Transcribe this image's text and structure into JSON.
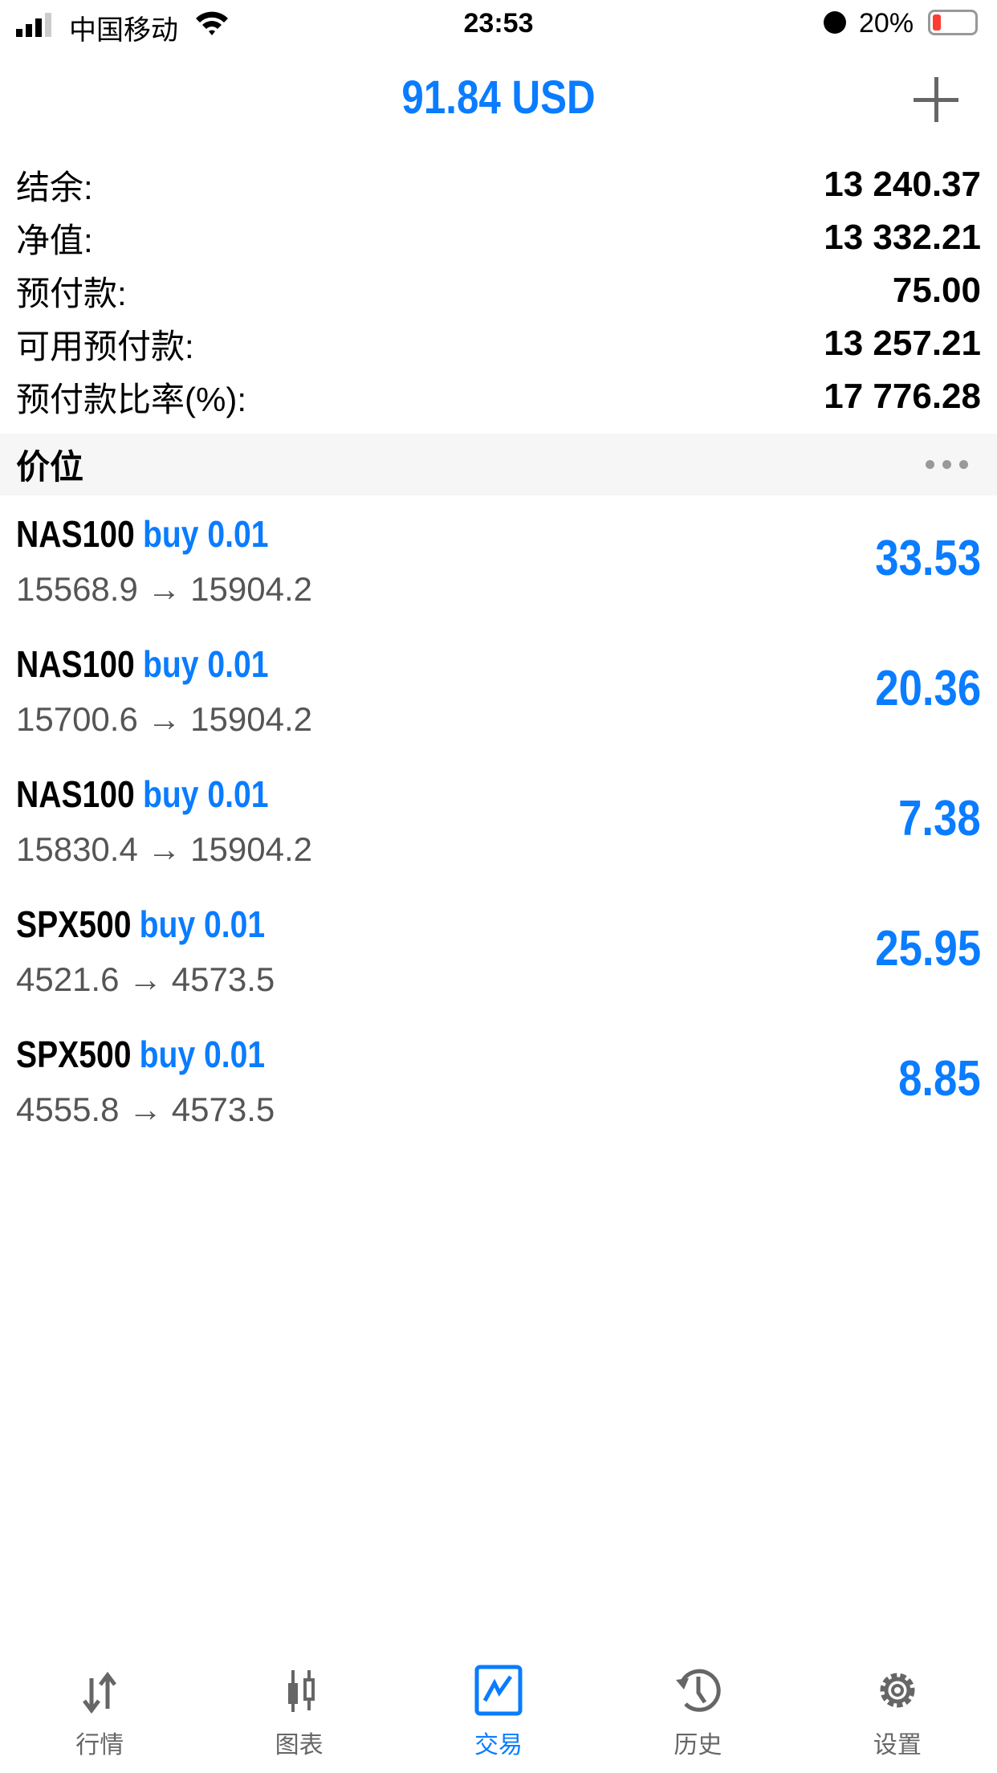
{
  "status_bar": {
    "carrier": "中国移动",
    "time": "23:53",
    "battery": "20%",
    "battery_level": 0.2
  },
  "header": {
    "title": "91.84 USD",
    "add_icon": "plus-icon"
  },
  "account": [
    {
      "label": "结余:",
      "value": "13 240.37"
    },
    {
      "label": "净值:",
      "value": "13 332.21"
    },
    {
      "label": "预付款:",
      "value": "75.00"
    },
    {
      "label": "可用预付款:",
      "value": "13 257.21"
    },
    {
      "label": "预付款比率(%):",
      "value": "17 776.28"
    }
  ],
  "section": {
    "title": "价位"
  },
  "trades": [
    {
      "symbol": "NAS100",
      "side": "buy 0.01",
      "prices": "15568.9 → 15904.2",
      "profit": "33.53"
    },
    {
      "symbol": "NAS100",
      "side": "buy 0.01",
      "prices": "15700.6 → 15904.2",
      "profit": "20.36"
    },
    {
      "symbol": "NAS100",
      "side": "buy 0.01",
      "prices": "15830.4 → 15904.2",
      "profit": "7.38"
    },
    {
      "symbol": "SPX500",
      "side": "buy 0.01",
      "prices": "4521.6 → 4573.5",
      "profit": "25.95"
    },
    {
      "symbol": "SPX500",
      "side": "buy 0.01",
      "prices": "4555.8 → 4573.5",
      "profit": "8.85"
    }
  ],
  "tabs": [
    {
      "label": "行情",
      "icon": "arrows-updown-icon"
    },
    {
      "label": "图表",
      "icon": "candlestick-icon"
    },
    {
      "label": "交易",
      "icon": "trade-chart-icon",
      "active": true
    },
    {
      "label": "历史",
      "icon": "history-icon"
    },
    {
      "label": "设置",
      "icon": "gear-icon"
    }
  ],
  "colors": {
    "accent": "#0a7cff",
    "battery_low": "#ff3b30"
  }
}
